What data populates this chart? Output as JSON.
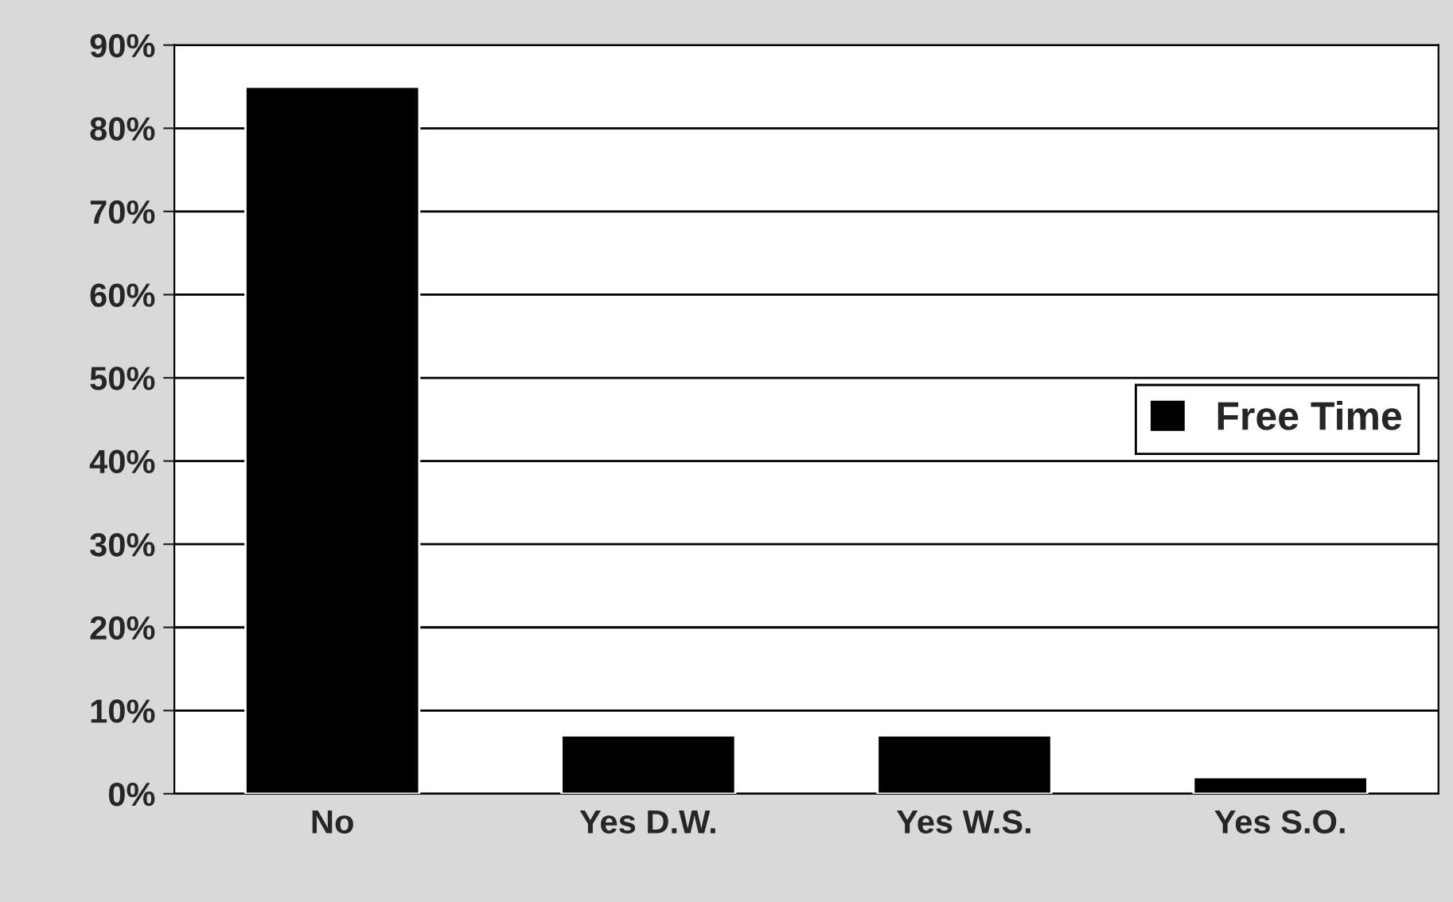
{
  "chart_data": {
    "type": "bar",
    "categories": [
      "No",
      "Yes D.W.",
      "Yes W.S.",
      "Yes S.O."
    ],
    "series": [
      {
        "name": "Free Time",
        "color": "#000000",
        "values": [
          85,
          7,
          7,
          2
        ]
      }
    ],
    "ylim": [
      0,
      90
    ],
    "yticks": [
      {
        "value": 0,
        "label": "0%"
      },
      {
        "value": 10,
        "label": "10%"
      },
      {
        "value": 20,
        "label": "20%"
      },
      {
        "value": 30,
        "label": "30%"
      },
      {
        "value": 40,
        "label": "40%"
      },
      {
        "value": 50,
        "label": "50%"
      },
      {
        "value": 60,
        "label": "60%"
      },
      {
        "value": 70,
        "label": "70%"
      },
      {
        "value": 80,
        "label": "80%"
      },
      {
        "value": 90,
        "label": "90%"
      }
    ],
    "grid": "y",
    "legend": "right"
  }
}
